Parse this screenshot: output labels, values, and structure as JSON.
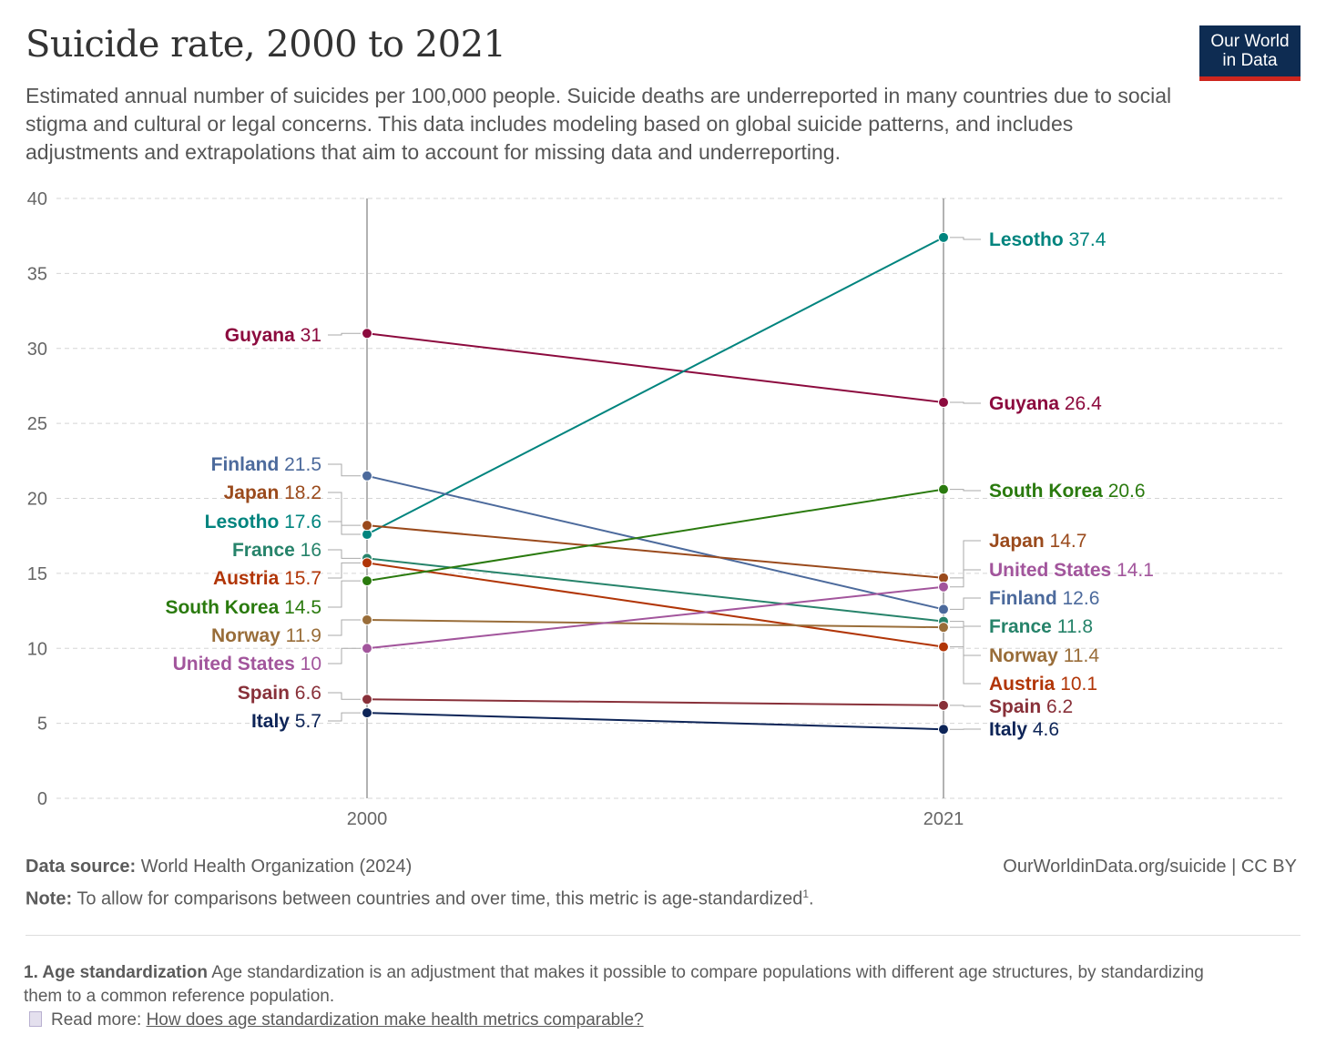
{
  "header": {
    "title": "Suicide rate, 2000 to 2021",
    "subtitle": "Estimated annual number of suicides per 100,000 people. Suicide deaths are underreported in many countries due to social stigma and cultural or legal concerns. This data includes modeling based on global suicide patterns, and includes adjustments and extrapolations that aim to account for missing data and underreporting.",
    "logo_line1": "Our World",
    "logo_line2": "in Data"
  },
  "chart_data": {
    "type": "line",
    "title": "Suicide rate, 2000 to 2021",
    "x": [
      2000,
      2021
    ],
    "x_tick_labels": [
      "2000",
      "2021"
    ],
    "ylim": [
      0,
      40
    ],
    "y_ticks": [
      0,
      5,
      10,
      15,
      20,
      25,
      30,
      35,
      40
    ],
    "grid": true,
    "series": [
      {
        "name": "Guyana",
        "values": [
          31,
          26.4
        ],
        "labels": [
          "31",
          "26.4"
        ],
        "color": "#8c0a3e"
      },
      {
        "name": "Lesotho",
        "values": [
          17.6,
          37.4
        ],
        "labels": [
          "17.6",
          "37.4"
        ],
        "color": "#00847e"
      },
      {
        "name": "Finland",
        "values": [
          21.5,
          12.6
        ],
        "labels": [
          "21.5",
          "12.6"
        ],
        "color": "#4c6a9c"
      },
      {
        "name": "Japan",
        "values": [
          18.2,
          14.7
        ],
        "labels": [
          "18.2",
          "14.7"
        ],
        "color": "#9a4a1c"
      },
      {
        "name": "France",
        "values": [
          16,
          11.8
        ],
        "labels": [
          "16",
          "11.8"
        ],
        "color": "#26836a"
      },
      {
        "name": "Austria",
        "values": [
          15.7,
          10.1
        ],
        "labels": [
          "15.7",
          "10.1"
        ],
        "color": "#b13507"
      },
      {
        "name": "South Korea",
        "values": [
          14.5,
          20.6
        ],
        "labels": [
          "14.5",
          "20.6"
        ],
        "color": "#2a7a0e"
      },
      {
        "name": "Norway",
        "values": [
          11.9,
          11.4
        ],
        "labels": [
          "11.9",
          "11.4"
        ],
        "color": "#996d39"
      },
      {
        "name": "United States",
        "values": [
          10,
          14.1
        ],
        "labels": [
          "10",
          "14.1"
        ],
        "color": "#a2559c"
      },
      {
        "name": "Spain",
        "values": [
          6.6,
          6.2
        ],
        "labels": [
          "6.6",
          "6.2"
        ],
        "color": "#883039"
      },
      {
        "name": "Italy",
        "values": [
          5.7,
          4.6
        ],
        "labels": [
          "5.7",
          "4.6"
        ],
        "color": "#0d2457"
      }
    ]
  },
  "footer": {
    "source_label": "Data source:",
    "source": "World Health Organization (2024)",
    "url": "OurWorldinData.org/suicide | CC BY",
    "note_label": "Note:",
    "note": "To allow for comparisons between countries and over time, this metric is age-standardized",
    "note_sup": "1",
    "note_end": "."
  },
  "footnote": {
    "title": "1. Age standardization",
    "text": "Age standardization is an adjustment that makes it possible to compare populations with different age structures, by standardizing them to a common reference population.",
    "read_more": "Read more:",
    "link": "How does age standardization make health metrics comparable?"
  }
}
